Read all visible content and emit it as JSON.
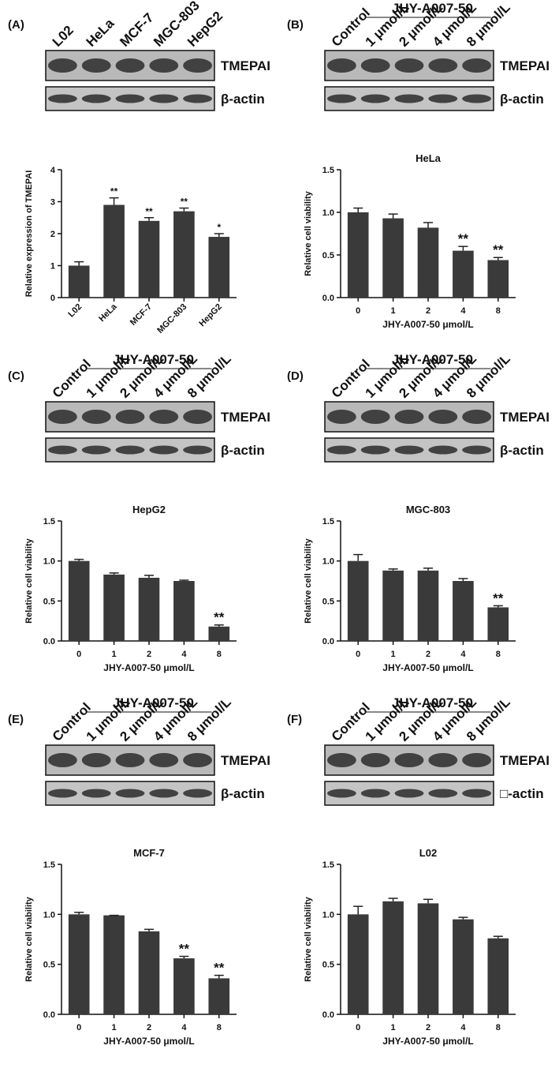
{
  "chart_data": [
    {
      "type": "bar",
      "panel_label": "(A)",
      "blot_lanes": [
        "L02",
        "HeLa",
        "MCF-7",
        "MGC-803",
        "HepG2"
      ],
      "blot_bands": [
        "TMEPAI",
        "β-actin"
      ],
      "ylabel": "Relative expression of  TMEPAI",
      "categories": [
        "L02",
        "HeLa",
        "MCF-7",
        "MGC-803",
        "HepG2"
      ],
      "values": [
        1.0,
        2.9,
        2.4,
        2.7,
        1.9
      ],
      "errors": [
        0.12,
        0.22,
        0.1,
        0.1,
        0.1
      ],
      "annotations": [
        null,
        "**",
        "**",
        "**",
        "*"
      ],
      "color": "#3a3a3a",
      "ylim": [
        0,
        4
      ],
      "yticks": [
        0,
        1,
        2,
        3,
        4
      ]
    },
    {
      "type": "bar",
      "panel_label": "(B)",
      "blot_group_label": "JHY-A007-50",
      "blot_lanes": [
        "Control",
        "1 μmol/L",
        "2 μmol/L",
        "4 μmol/L",
        "8 μmol/L"
      ],
      "blot_bands": [
        "TMEPAI",
        "β-actin"
      ],
      "title": "HeLa",
      "ylabel": "Relative cell viability",
      "xlabel": "JHY-A007-50  μmol/L",
      "categories": [
        "0",
        "1",
        "2",
        "4",
        "8"
      ],
      "values": [
        1.0,
        0.93,
        0.82,
        0.55,
        0.44
      ],
      "errors": [
        0.05,
        0.05,
        0.06,
        0.05,
        0.03
      ],
      "annotations": [
        null,
        null,
        null,
        "**",
        "**"
      ],
      "color": "#3a3a3a",
      "ylim": [
        0,
        1.5
      ],
      "yticks": [
        {
          "value": 0,
          "label": "0.0"
        },
        {
          "value": 0.5,
          "label": "0.5"
        },
        {
          "value": 1,
          "label": "1.0"
        },
        {
          "value": 1.5,
          "label": "1.5"
        }
      ]
    },
    {
      "type": "bar",
      "panel_label": "(C)",
      "blot_group_label": "JHY-A007-50",
      "blot_lanes": [
        "Control",
        "1 μmol/L",
        "2 μmol/L",
        "4 μmol/L",
        "8 μmol/L"
      ],
      "blot_bands": [
        "TMEPAI",
        "β-actin"
      ],
      "title": "HepG2",
      "ylabel": "Relative cell viability",
      "xlabel": "JHY-A007-50  μmol/L",
      "categories": [
        "0",
        "1",
        "2",
        "4",
        "8"
      ],
      "values": [
        1.0,
        0.83,
        0.79,
        0.75,
        0.18
      ],
      "errors": [
        0.02,
        0.02,
        0.03,
        0.01,
        0.02
      ],
      "annotations": [
        null,
        null,
        null,
        null,
        "**"
      ],
      "color": "#3a3a3a",
      "ylim": [
        0,
        1.5
      ],
      "yticks": [
        {
          "value": 0,
          "label": "0.0"
        },
        {
          "value": 0.5,
          "label": "0.5"
        },
        {
          "value": 1,
          "label": "1.0"
        },
        {
          "value": 1.5,
          "label": "1.5"
        }
      ]
    },
    {
      "type": "bar",
      "panel_label": "(D)",
      "blot_group_label": "JHY-A007-50",
      "blot_lanes": [
        "Control",
        "1 μmol/L",
        "2 μmol/L",
        "4 μmol/L",
        "8 μmol/L"
      ],
      "blot_bands": [
        "TMEPAI",
        "β-actin"
      ],
      "title": "MGC-803",
      "ylabel": "Relative cell viability",
      "xlabel": "JHY-A007-50  μmol/L",
      "categories": [
        "0",
        "1",
        "2",
        "4",
        "8"
      ],
      "values": [
        1.0,
        0.88,
        0.88,
        0.75,
        0.42
      ],
      "errors": [
        0.08,
        0.02,
        0.03,
        0.03,
        0.02
      ],
      "annotations": [
        null,
        null,
        null,
        null,
        "**"
      ],
      "color": "#3a3a3a",
      "ylim": [
        0,
        1.5
      ],
      "yticks": [
        {
          "value": 0,
          "label": "0.0"
        },
        {
          "value": 0.5,
          "label": "0.5"
        },
        {
          "value": 1,
          "label": "1.0"
        },
        {
          "value": 1.5,
          "label": "1.5"
        }
      ]
    },
    {
      "type": "bar",
      "panel_label": "(E)",
      "blot_group_label": "JHY-A007-50",
      "blot_lanes": [
        "Control",
        "1 μmol/L",
        "2 μmol/L",
        "4 μmol/L",
        "8 μmol/L"
      ],
      "blot_bands": [
        "TMEPAI",
        "β-actin"
      ],
      "title": "MCF-7",
      "ylabel": "Relative cell viability",
      "xlabel": "JHY-A007-50  μmol/L",
      "categories": [
        "0",
        "1",
        "2",
        "4",
        "8"
      ],
      "values": [
        1.0,
        0.99,
        0.83,
        0.56,
        0.36
      ],
      "errors": [
        0.02,
        0.0,
        0.02,
        0.02,
        0.03
      ],
      "annotations": [
        null,
        null,
        null,
        "**",
        "**"
      ],
      "color": "#3a3a3a",
      "ylim": [
        0,
        1.5
      ],
      "yticks": [
        {
          "value": 0,
          "label": "0.0"
        },
        {
          "value": 0.5,
          "label": "0.5"
        },
        {
          "value": 1,
          "label": "1.0"
        },
        {
          "value": 1.5,
          "label": "1.5"
        }
      ]
    },
    {
      "type": "bar",
      "panel_label": "(F)",
      "blot_group_label": "JHY-A007-50",
      "blot_lanes": [
        "Control",
        "1 μmol/L",
        "2 μmol/L",
        "4 μmol/L",
        "8 μmol/L"
      ],
      "blot_bands": [
        "TMEPAI",
        "□-actin"
      ],
      "title": "L02",
      "ylabel": "Relative cell viability",
      "xlabel": "JHY-A007-50  μmol/L",
      "categories": [
        "0",
        "1",
        "2",
        "4",
        "8"
      ],
      "values": [
        1.0,
        1.13,
        1.11,
        0.95,
        0.76
      ],
      "errors": [
        0.08,
        0.03,
        0.04,
        0.02,
        0.02
      ],
      "annotations": [
        null,
        null,
        null,
        null,
        null
      ],
      "color": "#3a3a3a",
      "ylim": [
        0,
        1.5
      ],
      "yticks": [
        {
          "value": 0,
          "label": "0.0"
        },
        {
          "value": 0.5,
          "label": "0.5"
        },
        {
          "value": 1,
          "label": "1.0"
        },
        {
          "value": 1.5,
          "label": "1.5"
        }
      ]
    }
  ]
}
